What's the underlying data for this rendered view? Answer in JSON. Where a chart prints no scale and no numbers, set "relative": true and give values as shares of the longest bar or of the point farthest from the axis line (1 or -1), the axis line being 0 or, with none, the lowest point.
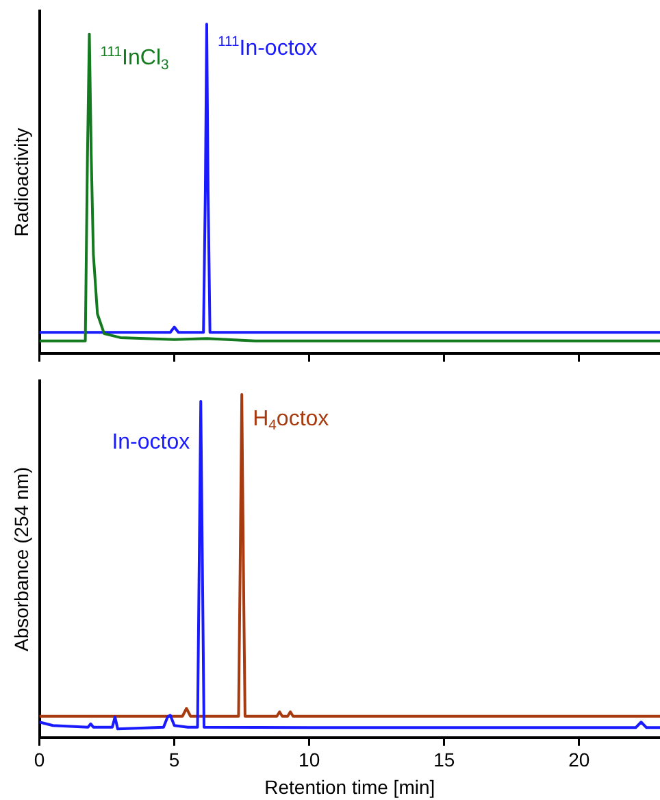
{
  "chart_data": [
    {
      "type": "line",
      "relative": true,
      "ylabel": "Radioactivity",
      "xlim": [
        0,
        23
      ],
      "xticks": [
        0,
        5,
        10,
        15,
        20
      ],
      "tick_labels": false,
      "grid": false,
      "legend": false,
      "marker": "none",
      "series": [
        {
          "color": "#137a1f",
          "x": [
            0,
            1.7,
            1.78,
            1.85,
            1.92,
            2.0,
            2.15,
            2.4,
            3,
            5,
            6.2,
            8,
            23
          ],
          "values": [
            0.038,
            0.038,
            0.6,
            0.97,
            0.6,
            0.3,
            0.12,
            0.06,
            0.048,
            0.042,
            0.045,
            0.038,
            0.038
          ]
        },
        {
          "color": "#1a1aff",
          "x": [
            0,
            4.85,
            5.0,
            5.15,
            6.08,
            6.15,
            6.2,
            6.25,
            6.32,
            10,
            23
          ],
          "values": [
            0.064,
            0.064,
            0.08,
            0.064,
            0.064,
            0.5,
            1,
            0.5,
            0.064,
            0.064,
            0.064
          ]
        }
      ],
      "annotations": [
        "$^{111}$InCl$_{3}$",
        "$^{111}$In-octox"
      ]
    },
    {
      "type": "line",
      "relative": true,
      "ylabel": "Absorbance (254 nm)",
      "xlabel": "Retention time [min]",
      "xlim": [
        0,
        23
      ],
      "xticks": [
        0,
        5,
        10,
        15,
        20
      ],
      "tick_labels": "x",
      "grid": false,
      "legend": false,
      "marker": "none",
      "series": [
        {
          "color": "#1a1aff",
          "x": [
            0,
            0.5,
            1.8,
            1.9,
            2.0,
            2.7,
            2.8,
            2.9,
            4.6,
            4.75,
            4.85,
            5.0,
            5.5,
            5.86,
            5.92,
            5.98,
            6.04,
            6.1,
            10,
            22.1,
            22.3,
            22.5,
            23
          ],
          "values": [
            0.045,
            0.035,
            0.03,
            0.04,
            0.03,
            0.03,
            0.06,
            0.025,
            0.03,
            0.06,
            0.065,
            0.035,
            0.03,
            0.03,
            0.5,
            0.98,
            0.5,
            0.03,
            0.029,
            0.029,
            0.045,
            0.029,
            0.029
          ]
        },
        {
          "color": "#a83a10",
          "x": [
            0,
            5.3,
            5.45,
            5.6,
            7.38,
            7.44,
            7.5,
            7.56,
            7.62,
            8.8,
            8.9,
            9.0,
            9.2,
            9.3,
            9.4,
            23
          ],
          "values": [
            0.062,
            0.062,
            0.085,
            0.062,
            0.062,
            0.5,
            1,
            0.5,
            0.062,
            0.062,
            0.075,
            0.062,
            0.062,
            0.075,
            0.062,
            0.062
          ]
        }
      ],
      "annotations": [
        "In-octox",
        "H$_{4}$octox"
      ]
    }
  ]
}
